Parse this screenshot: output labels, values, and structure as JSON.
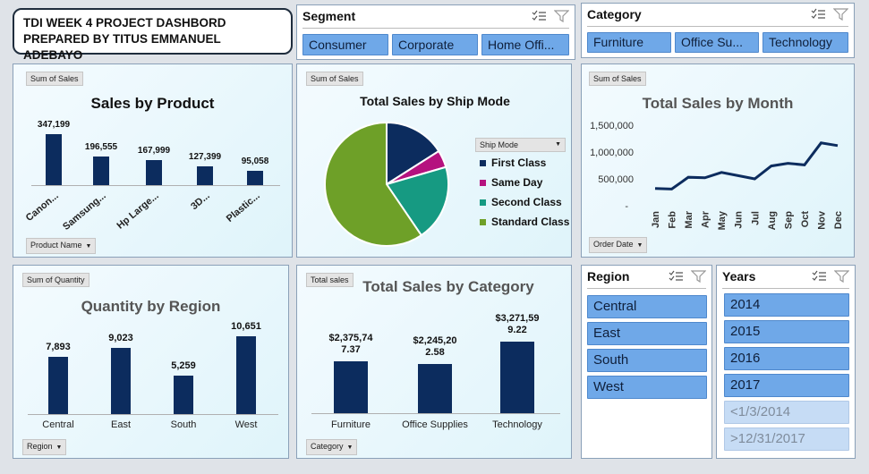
{
  "header": {
    "line1": "TDI WEEK 4 PROJECT DASHBORD",
    "line2": "PREPARED BY TITUS EMMANUEL ADEBAYO"
  },
  "segment_slicer": {
    "title": "Segment",
    "items": [
      "Consumer",
      "Corporate",
      "Home Offi..."
    ]
  },
  "category_slicer": {
    "title": "Category",
    "items": [
      "Furniture",
      "Office Su...",
      "Technology"
    ]
  },
  "region_slicer": {
    "title": "Region",
    "items": [
      "Central",
      "East",
      "South",
      "West"
    ]
  },
  "years_slicer": {
    "title": "Years",
    "items": [
      "2014",
      "2015",
      "2016",
      "2017"
    ],
    "dim_items": [
      "<1/3/2014",
      ">12/31/2017"
    ]
  },
  "colors": {
    "bar": "#0c2c5e",
    "slicer_selected": "#6fa8e8",
    "slicer_dim": "#c6dcf5",
    "pie": [
      "#0c2c5e",
      "#b5127f",
      "#169a82",
      "#6ea028"
    ]
  },
  "product_chart": {
    "field_chip": "Sum of Sales",
    "filter_chip": "Product Name",
    "chart_data": {
      "type": "bar",
      "title": "Sales by Product",
      "categories": [
        "Canon...",
        "Samsung...",
        "Hp Large...",
        "3D...",
        "Plastic..."
      ],
      "values": [
        347199,
        196555,
        167999,
        127399,
        95058
      ],
      "labels": [
        "347,199",
        "196,555",
        "167,999",
        "127,399",
        "95,058"
      ]
    }
  },
  "shipmode_chart": {
    "field_chip": "Sum of Sales",
    "legend_header": "Ship Mode",
    "chart_data": {
      "type": "pie",
      "title": "Total Sales by Ship Mode",
      "categories": [
        "First Class",
        "Same Day",
        "Second Class",
        "Standard Class"
      ],
      "values": [
        0.16,
        0.045,
        0.2,
        0.595
      ]
    }
  },
  "month_chart": {
    "field_chip": "Sum of Sales",
    "filter_chip": "Order Date",
    "chart_data": {
      "type": "line",
      "title": "Total Sales by Month",
      "categories": [
        "Jan",
        "Feb",
        "Mar",
        "Apr",
        "May",
        "Jun",
        "Jul",
        "Aug",
        "Sep",
        "Oct",
        "Nov",
        "Dec"
      ],
      "values": [
        320000,
        310000,
        530000,
        520000,
        620000,
        560000,
        500000,
        740000,
        790000,
        760000,
        1170000,
        1120000
      ],
      "yticks": [
        "1,500,000",
        "1,000,000",
        "500,000",
        "-"
      ],
      "ylim": [
        0,
        1500000
      ]
    }
  },
  "region_chart": {
    "field_chip": "Sum of Quantity",
    "filter_chip": "Region",
    "chart_data": {
      "type": "bar",
      "title": "Quantity by Region",
      "categories": [
        "Central",
        "East",
        "South",
        "West"
      ],
      "values": [
        7893,
        9023,
        5259,
        10651
      ],
      "labels": [
        "7,893",
        "9,023",
        "5,259",
        "10,651"
      ]
    }
  },
  "category_chart": {
    "field_chip": "Total sales",
    "filter_chip": "Category",
    "chart_data": {
      "type": "bar",
      "title": "Total Sales by Category",
      "categories": [
        "Furniture",
        "Office Supplies",
        "Technology"
      ],
      "values": [
        2375747.37,
        2245202.58,
        3271599.22
      ],
      "label_lines": [
        [
          "$2,375,74",
          "7.37"
        ],
        [
          "$2,245,20",
          "2.58"
        ],
        [
          "$3,271,59",
          "9.22"
        ]
      ]
    }
  }
}
